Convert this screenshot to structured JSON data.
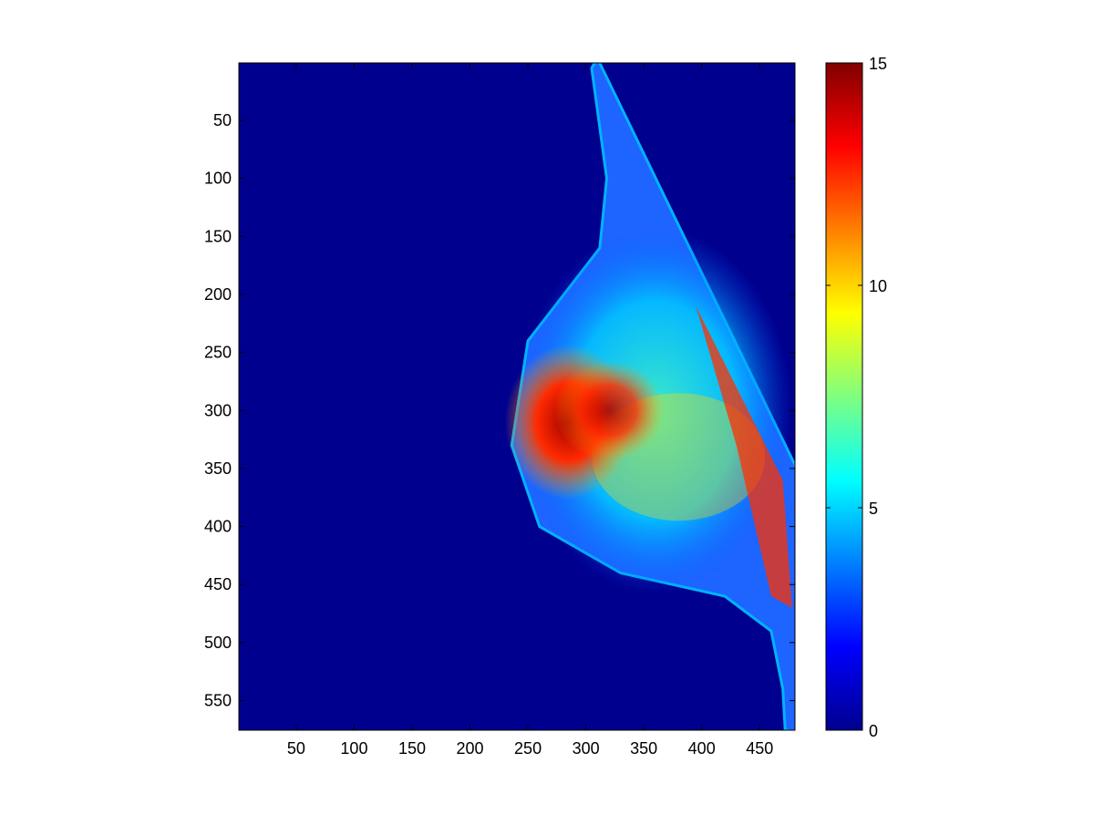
{
  "chart_data": {
    "type": "heatmap",
    "title": "",
    "xlabel": "",
    "ylabel": "",
    "x_ticks": [
      50,
      100,
      150,
      200,
      250,
      300,
      350,
      400,
      450
    ],
    "y_ticks": [
      50,
      100,
      150,
      200,
      250,
      300,
      350,
      400,
      450,
      500,
      550
    ],
    "xlim": [
      0.5,
      480.5
    ],
    "ylim": [
      0.5,
      575.5
    ],
    "y_axis_direction": "reversed",
    "grid": false,
    "colormap": "jet",
    "background_value": 0,
    "colorbar": {
      "ticks": [
        0,
        5,
        10,
        15
      ],
      "range": [
        0,
        15
      ],
      "location": "right"
    },
    "colors": {
      "jet_low": "#00008f",
      "jet_high": "#800000",
      "axis_line": "#000000"
    },
    "image_regions": [
      {
        "region": "tissue-outline",
        "y": [
          5,
          575
        ],
        "x_left_edge": [
          305,
          318,
          312,
          250,
          236,
          260,
          330,
          420,
          460,
          470,
          472
        ],
        "y_at_edges": [
          5,
          100,
          160,
          240,
          330,
          400,
          440,
          460,
          490,
          540,
          575
        ],
        "value": 2
      },
      {
        "region": "dense-tissue-core",
        "x": 285,
        "y": 310,
        "value": 14
      },
      {
        "region": "skin-edge-band",
        "x": 445,
        "y": 330,
        "value": 12
      }
    ]
  }
}
